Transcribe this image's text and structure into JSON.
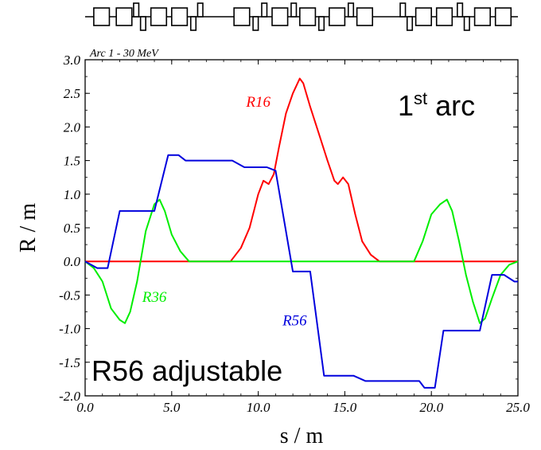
{
  "chart_data": {
    "type": "line",
    "subtitle": "Arc 1 - 30 MeV",
    "xlabel": "s / m",
    "ylabel": "R / m",
    "xlim": [
      0,
      25
    ],
    "ylim": [
      -2.0,
      3.0
    ],
    "x_ticks": [
      "0.0",
      "5.0",
      "10.0",
      "15.0",
      "20.0",
      "25.0"
    ],
    "y_ticks": [
      "3.0",
      "2.5",
      "2.0",
      "1.5",
      "1.0",
      "0.5",
      "0.0",
      "-0.5",
      "-1.0",
      "-1.5",
      "-2.0"
    ],
    "annotations": {
      "first_arc_main": "1",
      "first_arc_sup": "st",
      "first_arc_rest": " arc",
      "r56_adjustable": "R56 adjustable"
    },
    "grid": false,
    "series": [
      {
        "name": "R16",
        "color": "#ff0000",
        "points": [
          [
            0,
            0
          ],
          [
            8.4,
            0
          ],
          [
            9.0,
            0.2
          ],
          [
            9.5,
            0.5
          ],
          [
            10.0,
            1.0
          ],
          [
            10.3,
            1.2
          ],
          [
            10.6,
            1.15
          ],
          [
            10.9,
            1.3
          ],
          [
            11.2,
            1.7
          ],
          [
            11.6,
            2.2
          ],
          [
            12.0,
            2.5
          ],
          [
            12.4,
            2.72
          ],
          [
            12.6,
            2.65
          ],
          [
            13.0,
            2.3
          ],
          [
            13.5,
            1.9
          ],
          [
            14.0,
            1.5
          ],
          [
            14.4,
            1.2
          ],
          [
            14.6,
            1.15
          ],
          [
            14.9,
            1.25
          ],
          [
            15.2,
            1.15
          ],
          [
            15.6,
            0.7
          ],
          [
            16.0,
            0.3
          ],
          [
            16.5,
            0.1
          ],
          [
            17.0,
            0
          ],
          [
            25,
            0
          ]
        ]
      },
      {
        "name": "R36",
        "color": "#00ee00",
        "points": [
          [
            0,
            0
          ],
          [
            0.5,
            -0.1
          ],
          [
            1.0,
            -0.3
          ],
          [
            1.5,
            -0.7
          ],
          [
            2.0,
            -0.87
          ],
          [
            2.3,
            -0.92
          ],
          [
            2.6,
            -0.75
          ],
          [
            3.0,
            -0.3
          ],
          [
            3.5,
            0.45
          ],
          [
            4.0,
            0.85
          ],
          [
            4.3,
            0.92
          ],
          [
            4.6,
            0.75
          ],
          [
            5.0,
            0.4
          ],
          [
            5.5,
            0.15
          ],
          [
            6.0,
            0
          ],
          [
            19.0,
            0
          ],
          [
            19.5,
            0.3
          ],
          [
            20.0,
            0.7
          ],
          [
            20.5,
            0.85
          ],
          [
            20.9,
            0.92
          ],
          [
            21.2,
            0.75
          ],
          [
            21.6,
            0.3
          ],
          [
            22.0,
            -0.2
          ],
          [
            22.4,
            -0.6
          ],
          [
            22.8,
            -0.92
          ],
          [
            23.1,
            -0.85
          ],
          [
            23.5,
            -0.55
          ],
          [
            24.0,
            -0.2
          ],
          [
            24.5,
            -0.05
          ],
          [
            25.0,
            0
          ]
        ]
      },
      {
        "name": "R56",
        "color": "#0000dd",
        "points": [
          [
            0,
            0
          ],
          [
            0.7,
            -0.1
          ],
          [
            1.3,
            -0.1
          ],
          [
            2.0,
            0.75
          ],
          [
            4.0,
            0.75
          ],
          [
            4.8,
            1.58
          ],
          [
            5.4,
            1.58
          ],
          [
            5.8,
            1.5
          ],
          [
            8.5,
            1.5
          ],
          [
            9.2,
            1.4
          ],
          [
            10.5,
            1.4
          ],
          [
            11.0,
            1.35
          ],
          [
            12.0,
            -0.15
          ],
          [
            13.0,
            -0.15
          ],
          [
            13.8,
            -1.7
          ],
          [
            15.5,
            -1.7
          ],
          [
            16.2,
            -1.78
          ],
          [
            19.3,
            -1.78
          ],
          [
            19.6,
            -1.88
          ],
          [
            20.2,
            -1.88
          ],
          [
            20.7,
            -1.03
          ],
          [
            22.8,
            -1.03
          ],
          [
            23.5,
            -0.2
          ],
          [
            24.2,
            -0.2
          ],
          [
            24.8,
            -0.3
          ],
          [
            25.0,
            -0.3
          ]
        ]
      }
    ]
  },
  "lattice": {
    "elements": [
      {
        "type": "dipole",
        "s": [
          0.5,
          1.4
        ]
      },
      {
        "type": "dipole",
        "s": [
          1.8,
          2.7
        ]
      },
      {
        "type": "quad",
        "s": [
          2.8,
          3.1
        ],
        "side": "up"
      },
      {
        "type": "quad",
        "s": [
          3.2,
          3.5
        ],
        "side": "down"
      },
      {
        "type": "dipole",
        "s": [
          3.8,
          4.7
        ]
      },
      {
        "type": "dipole",
        "s": [
          5.0,
          5.9
        ]
      },
      {
        "type": "quad",
        "s": [
          6.1,
          6.4
        ],
        "side": "down"
      },
      {
        "type": "quad",
        "s": [
          6.5,
          6.8
        ],
        "side": "up"
      },
      {
        "type": "dipole",
        "s": [
          8.6,
          9.5
        ]
      },
      {
        "type": "quad",
        "s": [
          9.7,
          10.0
        ],
        "side": "down"
      },
      {
        "type": "quad",
        "s": [
          10.2,
          10.5
        ],
        "side": "up"
      },
      {
        "type": "dipole",
        "s": [
          10.8,
          11.7
        ]
      },
      {
        "type": "quad",
        "s": [
          11.9,
          12.2
        ],
        "side": "up"
      },
      {
        "type": "dipole",
        "s": [
          12.4,
          13.3
        ]
      },
      {
        "type": "quad",
        "s": [
          13.5,
          13.8
        ],
        "side": "down"
      },
      {
        "type": "dipole",
        "s": [
          14.1,
          15.0
        ]
      },
      {
        "type": "quad",
        "s": [
          15.2,
          15.5
        ],
        "side": "up"
      },
      {
        "type": "dipole",
        "s": [
          15.7,
          16.6
        ]
      },
      {
        "type": "quad",
        "s": [
          18.2,
          18.5
        ],
        "side": "up"
      },
      {
        "type": "quad",
        "s": [
          18.6,
          18.9
        ],
        "side": "down"
      },
      {
        "type": "dipole",
        "s": [
          19.1,
          20.0
        ]
      },
      {
        "type": "dipole",
        "s": [
          20.3,
          21.2
        ]
      },
      {
        "type": "quad",
        "s": [
          21.5,
          21.8
        ],
        "side": "up"
      },
      {
        "type": "quad",
        "s": [
          21.9,
          22.2
        ],
        "side": "down"
      },
      {
        "type": "dipole",
        "s": [
          22.5,
          23.4
        ]
      },
      {
        "type": "dipole",
        "s": [
          23.7,
          24.6
        ]
      }
    ]
  }
}
